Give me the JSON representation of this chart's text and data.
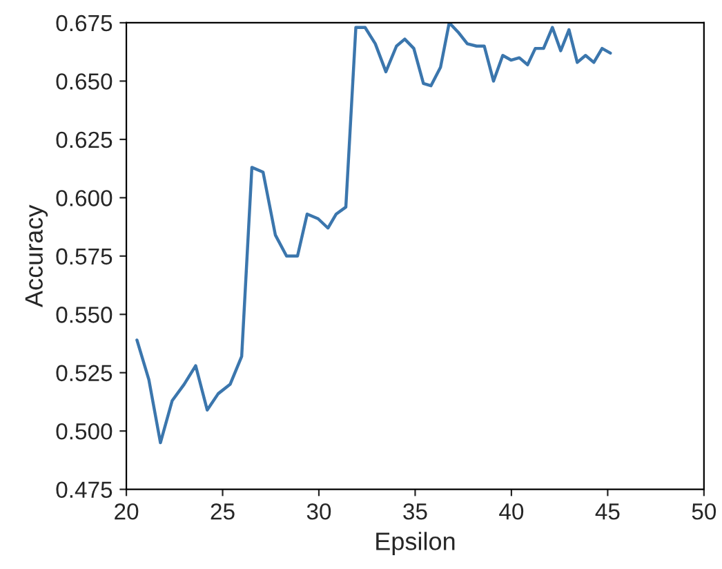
{
  "chart_data": {
    "type": "line",
    "xlabel": "Epsilon",
    "ylabel": "Accuracy",
    "x": [
      20.55,
      21.17,
      21.77,
      22.38,
      23.0,
      23.6,
      24.2,
      24.77,
      25.39,
      25.99,
      26.52,
      27.1,
      27.74,
      28.32,
      28.89,
      29.39,
      29.96,
      30.47,
      30.9,
      31.4,
      31.92,
      32.4,
      32.93,
      33.48,
      34.03,
      34.46,
      34.93,
      35.43,
      35.82,
      36.32,
      36.77,
      37.23,
      37.71,
      38.19,
      38.59,
      39.07,
      39.55,
      39.98,
      40.41,
      40.84,
      41.24,
      41.67,
      42.13,
      42.56,
      42.99,
      43.42,
      43.85,
      44.28,
      44.71,
      45.14
    ],
    "series": [
      {
        "color": "#3b76ad",
        "values": [
          0.539,
          0.522,
          0.495,
          0.513,
          0.52,
          0.528,
          0.509,
          0.516,
          0.52,
          0.532,
          0.613,
          0.611,
          0.584,
          0.575,
          0.575,
          0.593,
          0.591,
          0.587,
          0.593,
          0.596,
          0.673,
          0.673,
          0.666,
          0.654,
          0.665,
          0.668,
          0.664,
          0.649,
          0.648,
          0.656,
          0.675,
          0.671,
          0.666,
          0.665,
          0.665,
          0.65,
          0.661,
          0.659,
          0.66,
          0.657,
          0.664,
          0.664,
          0.673,
          0.663,
          0.672,
          0.658,
          0.661,
          0.658,
          0.664,
          0.662
        ]
      }
    ],
    "xlim": [
      20,
      50
    ],
    "xticks": [
      20,
      25,
      30,
      35,
      40,
      45,
      50
    ],
    "ylim": [
      0.475,
      0.675
    ],
    "yticks": [
      {
        "value": 0.475,
        "label": "0.475"
      },
      {
        "value": 0.5,
        "label": "0.500"
      },
      {
        "value": 0.525,
        "label": "0.525"
      },
      {
        "value": 0.55,
        "label": "0.550"
      },
      {
        "value": 0.575,
        "label": "0.575"
      },
      {
        "value": 0.6,
        "label": "0.600"
      },
      {
        "value": 0.625,
        "label": "0.625"
      },
      {
        "value": 0.65,
        "label": "0.650"
      },
      {
        "value": 0.675,
        "label": "0.675"
      }
    ],
    "grid": false
  }
}
